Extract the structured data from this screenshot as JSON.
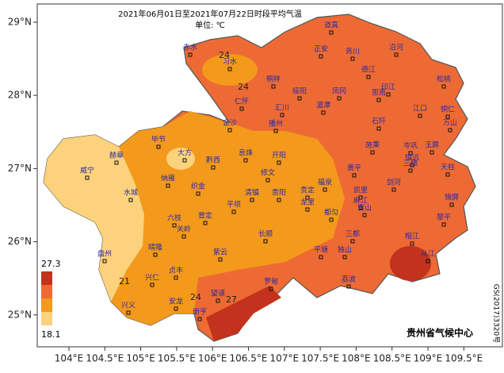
{
  "title": "2021年06月01日至2021年07月22日时段平均气温",
  "unit": "单位: ℃",
  "lat_ticks": [
    {
      "value": 29,
      "label": "29°N"
    },
    {
      "value": 28,
      "label": "28°N"
    },
    {
      "value": 27,
      "label": "27°N"
    },
    {
      "value": 26,
      "label": "26°N"
    },
    {
      "value": 25,
      "label": "25°N"
    }
  ],
  "lon_ticks": [
    {
      "value": 104,
      "label": "104°E"
    },
    {
      "value": 104.5,
      "label": "104.5°E"
    },
    {
      "value": 105,
      "label": "105°E"
    },
    {
      "value": 105.5,
      "label": "105.5°E"
    },
    {
      "value": 106,
      "label": "106°E"
    },
    {
      "value": 106.5,
      "label": "106.5°E"
    },
    {
      "value": 107,
      "label": "107°E"
    },
    {
      "value": 107.5,
      "label": "107.5°E"
    },
    {
      "value": 108,
      "label": "108°E"
    },
    {
      "value": 108.5,
      "label": "108.5°E"
    },
    {
      "value": 109,
      "label": "109°E"
    },
    {
      "value": 109.5,
      "label": "109.5°E"
    }
  ],
  "legend": {
    "max": 27.3,
    "min": 18.1,
    "colors": [
      "#c3321c",
      "#ee6a34",
      "#f3991c",
      "#fcd27c"
    ]
  },
  "isolines": [
    24,
    24,
    21,
    24,
    27
  ],
  "counties": [
    "赤水",
    "习水",
    "道真",
    "正安",
    "务川",
    "沿河",
    "德江",
    "印江",
    "松桃",
    "桐梓",
    "绥阳",
    "凤冈",
    "思南",
    "湄潭",
    "江口",
    "铜仁",
    "仁怀",
    "汇川",
    "播州",
    "金沙",
    "石阡",
    "万山",
    "毕节",
    "大方",
    "黔西",
    "赫章",
    "息烽",
    "开阳",
    "施秉",
    "岑巩",
    "玉屏",
    "镇远",
    "三穗",
    "天柱",
    "黄平",
    "威宁",
    "纳雍",
    "织金",
    "修文",
    "福泉",
    "凯里",
    "剑河",
    "锦屏",
    "水城",
    "清镇",
    "贵阳",
    "贵定",
    "麻江",
    "雷山",
    "六枝",
    "普定",
    "平坝",
    "龙里",
    "黎平",
    "关岭",
    "长顺",
    "都匀",
    "三都",
    "盘州",
    "晴隆",
    "紫云",
    "平塘",
    "独山",
    "从江",
    "榕江",
    "贞丰",
    "兴仁",
    "罗甸",
    "荔波",
    "望谟",
    "兴义",
    "安龙",
    "册亨"
  ],
  "credit": "贵州省气候中心",
  "approval": "GS(2017)3320号"
}
